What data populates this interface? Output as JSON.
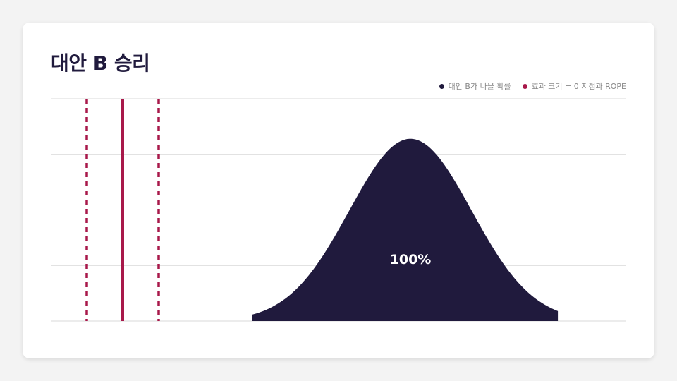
{
  "title": "대안 B 승리",
  "legend": {
    "items": [
      {
        "label": "대안 B가 나을 확률",
        "color": "#201a3d"
      },
      {
        "label": "효과 크기 = 0 지점과 ROPE",
        "color": "#a8184a"
      }
    ]
  },
  "colors": {
    "curve": "#201a3d",
    "marker": "#a8184a",
    "grid": "#d9d9d9",
    "background": "#ffffff"
  },
  "chart_data": {
    "type": "area",
    "title": "대안 B 승리",
    "xlabel": "",
    "ylabel": "",
    "xlim": [
      -1,
      7
    ],
    "ylim": [
      0,
      1
    ],
    "grid": true,
    "gridlines_y": [
      0,
      0.25,
      0.5,
      0.75,
      1
    ],
    "legend_position": "top-right",
    "distribution": {
      "mean": 4.0,
      "sd": 0.85,
      "peak": 0.82,
      "x_min": 1.8,
      "x_max": 6.05
    },
    "reference_line": {
      "x": 0,
      "style": "solid"
    },
    "rope": {
      "low": -0.5,
      "high": 0.5,
      "style": "dashed"
    },
    "annotation": "100%"
  }
}
